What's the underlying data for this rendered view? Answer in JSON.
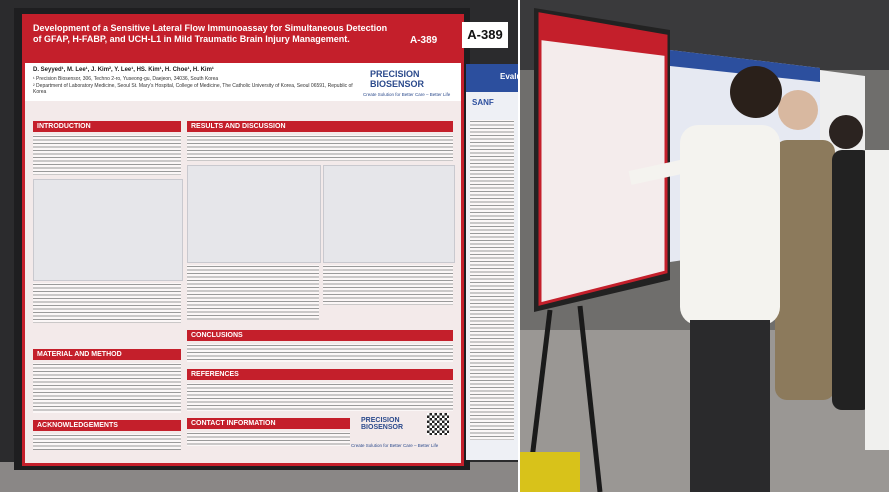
{
  "poster": {
    "title": "Development of a Sensitive Lateral Flow Immunoassay for Simultaneous Detection of GFAP, H-FABP, and UCH-L1 in Mild Traumatic Brain Injury Management.",
    "poster_id": "A-389",
    "authors": "D. Seyyed¹, M. Lee¹, J. Kim², Y. Lee¹, HS. Kim¹, H. Choe¹, H. Kim¹",
    "affiliations": [
      "¹ Precision Biosensor, 306, Techno 2-ro, Yuseong-gu, Daejeon, 34036, South Korea",
      "² Department of Laboratory Medicine, Seoul St. Mary's Hospital, College of Medicine, The Catholic University of Korea, Seoul 06591, Republic of Korea"
    ],
    "logo": "PRECISION BIOSENSOR",
    "tagline": "Create Solution for Better Care – Better Life",
    "sections": [
      "INTRODUCTION",
      "RESULTS AND DISCUSSION",
      "MATERIAL AND METHOD",
      "CONCLUSIONS",
      "REFERENCES",
      "ACKNOWLEDGEMENTS",
      "CONTACT INFORMATION"
    ]
  },
  "board_sign": "A-389",
  "neighbor_poster": {
    "title": "Evalu",
    "logo": "SANF"
  }
}
